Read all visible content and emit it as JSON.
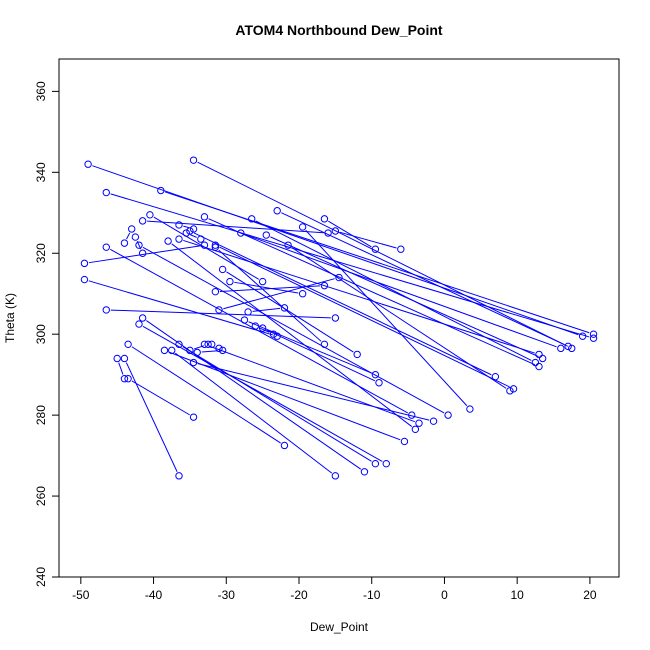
{
  "chart_data": {
    "type": "scatter",
    "title": "ATOM4 Northbound Dew_Point",
    "xlabel": "Dew_Point",
    "ylabel": "Theta (K)",
    "xlim": [
      -53,
      24
    ],
    "ylim": [
      240,
      368
    ],
    "xticks": [
      -50,
      -40,
      -30,
      -20,
      -10,
      0,
      10,
      20
    ],
    "yticks": [
      240,
      260,
      280,
      300,
      320,
      340,
      360
    ],
    "grid": false,
    "series": [
      {
        "color": "#0000ff",
        "marker": "open-circle",
        "segments": [
          [
            [
              -49,
              342
            ],
            [
              19,
              299.5
            ]
          ],
          [
            [
              -46.5,
              335
            ],
            [
              20.5,
              299
            ]
          ],
          [
            [
              -39,
              335.5
            ],
            [
              20.5,
              300
            ]
          ],
          [
            [
              -34.5,
              343
            ],
            [
              17.5,
              296.5
            ]
          ],
          [
            [
              -23,
              330.5
            ],
            [
              17,
              297
            ]
          ],
          [
            [
              -16.5,
              328.5
            ],
            [
              -9.5,
              321
            ]
          ],
          [
            [
              -15,
              325.5
            ],
            [
              -6,
              321
            ]
          ],
          [
            [
              -33,
              329
            ],
            [
              13,
              292
            ]
          ],
          [
            [
              -26.5,
              328.5
            ],
            [
              12.5,
              293
            ]
          ],
          [
            [
              -28,
              325
            ],
            [
              16,
              296.5
            ]
          ],
          [
            [
              -24.5,
              324.5
            ],
            [
              13.5,
              294
            ]
          ],
          [
            [
              -36.5,
              323.5
            ],
            [
              13,
              295
            ]
          ],
          [
            [
              -31.5,
              322
            ],
            [
              9.5,
              286.5
            ]
          ],
          [
            [
              -35,
              325.5
            ],
            [
              7,
              289.5
            ]
          ],
          [
            [
              -41.5,
              328
            ],
            [
              -16,
              325
            ]
          ],
          [
            [
              -21.5,
              322
            ],
            [
              9,
              286
            ]
          ],
          [
            [
              -19.5,
              326.5
            ],
            [
              3.5,
              281.5
            ]
          ],
          [
            [
              -40.5,
              329.5
            ],
            [
              -25,
              313
            ]
          ],
          [
            [
              -38,
              323
            ],
            [
              -4,
              276.5
            ]
          ],
          [
            [
              -42,
              322
            ],
            [
              0.5,
              280
            ]
          ],
          [
            [
              -46.5,
              321.5
            ],
            [
              -4.5,
              280
            ]
          ],
          [
            [
              -49.5,
              317.5
            ],
            [
              -33,
              322
            ]
          ],
          [
            [
              -49.5,
              313.5
            ],
            [
              -23,
              299.5
            ]
          ],
          [
            [
              -46.5,
              306
            ],
            [
              -15,
              304
            ]
          ],
          [
            [
              -41.5,
              304
            ],
            [
              -11,
              266
            ]
          ],
          [
            [
              -43.5,
              297.5
            ],
            [
              -22,
              272.5
            ]
          ],
          [
            [
              -42,
              302.5
            ],
            [
              -8,
              268
            ]
          ],
          [
            [
              -38.5,
              296
            ],
            [
              -5.5,
              273.5
            ]
          ],
          [
            [
              -36.5,
              297.5
            ],
            [
              -9.5,
              268
            ]
          ],
          [
            [
              -37.5,
              296
            ],
            [
              -15,
              265
            ]
          ],
          [
            [
              -34.5,
              293
            ],
            [
              -1.5,
              278.5
            ]
          ],
          [
            [
              -33,
              297.5
            ],
            [
              -3.5,
              278
            ]
          ],
          [
            [
              -31,
              306
            ],
            [
              -14.5,
              314
            ]
          ],
          [
            [
              -31.5,
              310.5
            ],
            [
              -16.5,
              312
            ]
          ],
          [
            [
              -29.5,
              313
            ],
            [
              -19.5,
              310
            ]
          ],
          [
            [
              -27,
              305.5
            ],
            [
              -22,
              306.5
            ]
          ],
          [
            [
              -25,
              301.5
            ],
            [
              -9,
              288
            ]
          ],
          [
            [
              -27.5,
              303.5
            ],
            [
              -9.5,
              290
            ]
          ],
          [
            [
              -30.5,
              316
            ],
            [
              -12,
              295
            ]
          ],
          [
            [
              -31.5,
              321.5
            ],
            [
              -16.5,
              297.5
            ]
          ],
          [
            [
              -44,
              294
            ],
            [
              -36.5,
              265
            ]
          ],
          [
            [
              -43.5,
              289
            ],
            [
              -34.5,
              279.5
            ]
          ],
          [
            [
              -45,
              294
            ],
            [
              -44,
              289
            ]
          ],
          [
            [
              -44,
              322.5
            ],
            [
              -43,
              326
            ]
          ],
          [
            [
              -42.5,
              324
            ],
            [
              -41.5,
              320
            ]
          ],
          [
            [
              -36.5,
              327
            ],
            [
              -34.5,
              326
            ]
          ],
          [
            [
              -35.5,
              325
            ],
            [
              -33.5,
              323.5
            ]
          ],
          [
            [
              -32,
              297.5
            ],
            [
              -31,
              296.5
            ]
          ],
          [
            [
              -26,
              302
            ],
            [
              -23.5,
              300
            ]
          ],
          [
            [
              -30.5,
              296
            ],
            [
              -34,
              295.5
            ]
          ],
          [
            [
              -35,
              296
            ],
            [
              -32.5,
              297.5
            ]
          ]
        ]
      }
    ]
  }
}
